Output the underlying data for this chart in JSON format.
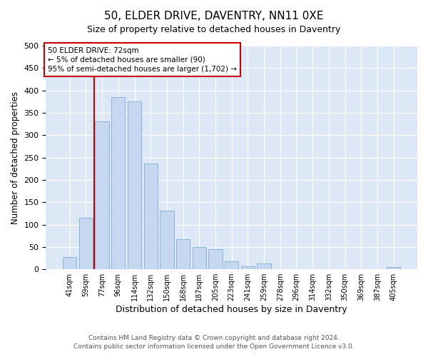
{
  "title": "50, ELDER DRIVE, DAVENTRY, NN11 0XE",
  "subtitle": "Size of property relative to detached houses in Daventry",
  "xlabel": "Distribution of detached houses by size in Daventry",
  "ylabel": "Number of detached properties",
  "bar_labels": [
    "41sqm",
    "59sqm",
    "77sqm",
    "96sqm",
    "114sqm",
    "132sqm",
    "150sqm",
    "168sqm",
    "187sqm",
    "205sqm",
    "223sqm",
    "241sqm",
    "259sqm",
    "278sqm",
    "296sqm",
    "314sqm",
    "332sqm",
    "350sqm",
    "369sqm",
    "387sqm",
    "405sqm"
  ],
  "bar_values": [
    28,
    116,
    330,
    385,
    375,
    237,
    132,
    68,
    50,
    45,
    18,
    7,
    13,
    0,
    0,
    0,
    0,
    0,
    0,
    0,
    5
  ],
  "bar_color": "#c5d8f0",
  "bar_edge_color": "#7aadd4",
  "property_line_label": "50 ELDER DRIVE: 72sqm",
  "annotation_line1": "← 5% of detached houses are smaller (90)",
  "annotation_line2": "95% of semi-detached houses are larger (1,702) →",
  "annotation_box_color": "#ffffff",
  "annotation_box_edge": "#cc0000",
  "vline_color": "#cc0000",
  "vline_x": 1.5,
  "ylim": [
    0,
    500
  ],
  "yticks": [
    0,
    50,
    100,
    150,
    200,
    250,
    300,
    350,
    400,
    450,
    500
  ],
  "footer1": "Contains HM Land Registry data © Crown copyright and database right 2024.",
  "footer2": "Contains public sector information licensed under the Open Government Licence v3.0.",
  "fig_bg_color": "#ffffff",
  "plot_bg_color": "#dce8f5"
}
